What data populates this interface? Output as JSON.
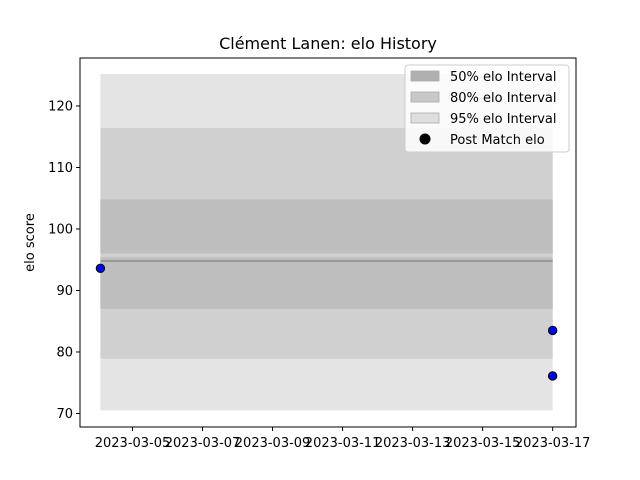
{
  "chart_data": {
    "type": "scatter",
    "title": "Clément Lanen: elo History",
    "ylabel": "elo score",
    "xlabel": "",
    "xlim": [
      "2023-03-03T12:00",
      "2023-03-17T16:00"
    ],
    "ylim": [
      67.8,
      127.8
    ],
    "x_ticks": [
      "2023-03-05",
      "2023-03-07",
      "2023-03-09",
      "2023-03-11",
      "2023-03-13",
      "2023-03-15",
      "2023-03-17"
    ],
    "y_ticks": [
      70,
      80,
      90,
      100,
      110,
      120
    ],
    "grid": false,
    "legend_position": "top-right",
    "bands": [
      {
        "name": "95% elo Interval",
        "color": "#e4e4e4",
        "segments": [
          {
            "x": [
              "2023-03-04T02:00",
              "2023-03-17T00:00"
            ],
            "low": 70.5,
            "high": 125.2
          }
        ]
      },
      {
        "name": "80% elo Interval",
        "color": "#d0d0d0",
        "segments": [
          {
            "x": [
              "2023-03-04T02:00",
              "2023-03-17T00:00"
            ],
            "low": 78.9,
            "high": 116.4
          }
        ]
      },
      {
        "name": "50% elo Interval",
        "color": "#bebebe",
        "segments": [
          {
            "x": [
              "2023-03-04T02:00",
              "2023-03-17T00:00"
            ],
            "low": 96.0,
            "high": 104.8
          },
          {
            "x": [
              "2023-03-04T02:00",
              "2023-03-17T00:00"
            ],
            "low": 87.0,
            "high": 95.4
          }
        ]
      }
    ],
    "lines": [
      {
        "x": [
          "2023-03-04T02:00",
          "2023-03-17T00:00"
        ],
        "y": [
          94.8,
          94.8
        ],
        "color": "#8c8c8c"
      }
    ],
    "series": [
      {
        "name": "Post Match elo",
        "color": "#0000ff",
        "edge": "#000000",
        "points": [
          {
            "x": "2023-03-04T02:00",
            "y": 93.6
          },
          {
            "x": "2023-03-17T00:00",
            "y": 83.5
          },
          {
            "x": "2023-03-17T00:00",
            "y": 76.1
          }
        ]
      }
    ],
    "legend": [
      {
        "label": "50% elo Interval",
        "kind": "patch",
        "color": "#b0b0b0"
      },
      {
        "label": "80% elo Interval",
        "kind": "patch",
        "color": "#c8c8c8"
      },
      {
        "label": "95% elo Interval",
        "kind": "patch",
        "color": "#dedede"
      },
      {
        "label": "Post Match elo",
        "kind": "marker",
        "color": "#000000"
      }
    ]
  }
}
